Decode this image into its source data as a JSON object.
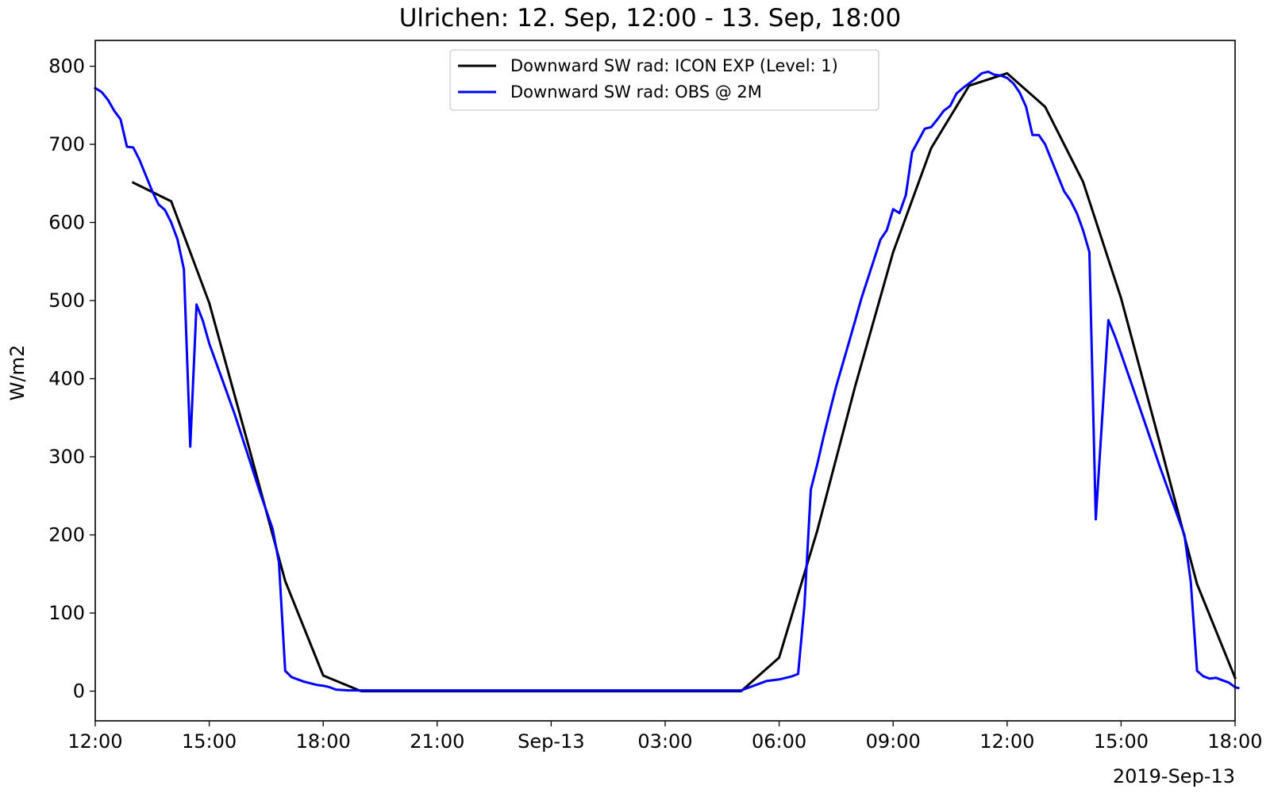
{
  "chart_data": {
    "type": "line",
    "title": "Ulrichen: 12. Sep, 12:00 - 13. Sep, 18:00",
    "xlabel": "",
    "ylabel": "W/m2",
    "x_ticks": [
      "12:00",
      "15:00",
      "18:00",
      "21:00",
      "Sep-13",
      "03:00",
      "06:00",
      "09:00",
      "12:00",
      "15:00",
      "18:00"
    ],
    "x_offset_label": "2019-Sep-13",
    "xlim": [
      "2019-09-12 12:00",
      "2019-09-13 18:00"
    ],
    "y_ticks": [
      0,
      100,
      200,
      300,
      400,
      500,
      600,
      700,
      800
    ],
    "ylim": [
      -38,
      833
    ],
    "grid": false,
    "legend_position": "upper center",
    "series": [
      {
        "name": "Downward SW rad: ICON EXP (Level: 1)",
        "color": "#000000",
        "points": [
          [
            "2019-09-12 13:00",
            651
          ],
          [
            "2019-09-12 14:00",
            627
          ],
          [
            "2019-09-12 15:00",
            497
          ],
          [
            "2019-09-12 16:00",
            320
          ],
          [
            "2019-09-12 17:00",
            141
          ],
          [
            "2019-09-12 18:00",
            20
          ],
          [
            "2019-09-12 19:00",
            0
          ],
          [
            "2019-09-12 20:00",
            0
          ],
          [
            "2019-09-12 21:00",
            0
          ],
          [
            "2019-09-12 22:00",
            0
          ],
          [
            "2019-09-12 23:00",
            0
          ],
          [
            "2019-09-13 00:00",
            0
          ],
          [
            "2019-09-13 01:00",
            0
          ],
          [
            "2019-09-13 02:00",
            0
          ],
          [
            "2019-09-13 03:00",
            0
          ],
          [
            "2019-09-13 04:00",
            0
          ],
          [
            "2019-09-13 05:00",
            0
          ],
          [
            "2019-09-13 06:00",
            43
          ],
          [
            "2019-09-13 07:00",
            205
          ],
          [
            "2019-09-13 08:00",
            390
          ],
          [
            "2019-09-13 09:00",
            562
          ],
          [
            "2019-09-13 10:00",
            695
          ],
          [
            "2019-09-13 11:00",
            775
          ],
          [
            "2019-09-13 12:00",
            791
          ],
          [
            "2019-09-13 13:00",
            748
          ],
          [
            "2019-09-13 14:00",
            652
          ],
          [
            "2019-09-13 15:00",
            503
          ],
          [
            "2019-09-13 16:00",
            321
          ],
          [
            "2019-09-13 17:00",
            137
          ],
          [
            "2019-09-13 18:00",
            17
          ]
        ]
      },
      {
        "name": "Downward SW rad: OBS @ 2M",
        "color": "#0000ff",
        "points": [
          [
            "2019-09-12 12:00",
            772
          ],
          [
            "2019-09-12 12:10",
            767
          ],
          [
            "2019-09-12 12:20",
            757
          ],
          [
            "2019-09-12 12:30",
            743
          ],
          [
            "2019-09-12 12:40",
            732
          ],
          [
            "2019-09-12 12:50",
            697
          ],
          [
            "2019-09-12 13:00",
            696
          ],
          [
            "2019-09-12 13:10",
            680
          ],
          [
            "2019-09-12 13:20",
            660
          ],
          [
            "2019-09-12 13:30",
            640
          ],
          [
            "2019-09-12 13:40",
            623
          ],
          [
            "2019-09-12 13:50",
            616
          ],
          [
            "2019-09-12 14:00",
            600
          ],
          [
            "2019-09-12 14:10",
            578
          ],
          [
            "2019-09-12 14:20",
            540
          ],
          [
            "2019-09-12 14:30",
            313
          ],
          [
            "2019-09-12 14:40",
            495
          ],
          [
            "2019-09-12 14:50",
            474
          ],
          [
            "2019-09-12 15:00",
            445
          ],
          [
            "2019-09-12 15:20",
            400
          ],
          [
            "2019-09-12 15:40",
            355
          ],
          [
            "2019-09-12 16:00",
            305
          ],
          [
            "2019-09-12 16:20",
            255
          ],
          [
            "2019-09-12 16:40",
            208
          ],
          [
            "2019-09-12 16:50",
            165
          ],
          [
            "2019-09-12 17:00",
            26
          ],
          [
            "2019-09-12 17:10",
            18
          ],
          [
            "2019-09-12 17:20",
            15
          ],
          [
            "2019-09-12 17:30",
            12
          ],
          [
            "2019-09-12 17:40",
            10
          ],
          [
            "2019-09-12 17:50",
            8
          ],
          [
            "2019-09-12 18:00",
            7
          ],
          [
            "2019-09-12 18:10",
            5
          ],
          [
            "2019-09-12 18:20",
            2
          ],
          [
            "2019-09-12 18:40",
            1
          ],
          [
            "2019-09-12 19:00",
            1
          ],
          [
            "2019-09-13 05:00",
            1
          ],
          [
            "2019-09-13 05:20",
            7
          ],
          [
            "2019-09-13 05:40",
            13
          ],
          [
            "2019-09-13 06:00",
            15
          ],
          [
            "2019-09-13 06:20",
            19
          ],
          [
            "2019-09-13 06:30",
            22
          ],
          [
            "2019-09-13 06:40",
            110
          ],
          [
            "2019-09-13 06:50",
            258
          ],
          [
            "2019-09-13 07:00",
            290
          ],
          [
            "2019-09-13 07:10",
            325
          ],
          [
            "2019-09-13 07:20",
            358
          ],
          [
            "2019-09-13 07:30",
            390
          ],
          [
            "2019-09-13 07:40",
            418
          ],
          [
            "2019-09-13 07:50",
            446
          ],
          [
            "2019-09-13 08:00",
            474
          ],
          [
            "2019-09-13 08:10",
            503
          ],
          [
            "2019-09-13 08:20",
            528
          ],
          [
            "2019-09-13 08:30",
            553
          ],
          [
            "2019-09-13 08:40",
            578
          ],
          [
            "2019-09-13 08:50",
            590
          ],
          [
            "2019-09-13 09:00",
            617
          ],
          [
            "2019-09-13 09:10",
            612
          ],
          [
            "2019-09-13 09:20",
            635
          ],
          [
            "2019-09-13 09:30",
            690
          ],
          [
            "2019-09-13 09:40",
            705
          ],
          [
            "2019-09-13 09:50",
            720
          ],
          [
            "2019-09-13 10:00",
            722
          ],
          [
            "2019-09-13 10:10",
            732
          ],
          [
            "2019-09-13 10:20",
            743
          ],
          [
            "2019-09-13 10:30",
            749
          ],
          [
            "2019-09-13 10:40",
            765
          ],
          [
            "2019-09-13 10:50",
            772
          ],
          [
            "2019-09-13 11:00",
            778
          ],
          [
            "2019-09-13 11:10",
            784
          ],
          [
            "2019-09-13 11:20",
            791
          ],
          [
            "2019-09-13 11:30",
            793
          ],
          [
            "2019-09-13 11:40",
            789
          ],
          [
            "2019-09-13 11:50",
            788
          ],
          [
            "2019-09-13 12:00",
            785
          ],
          [
            "2019-09-13 12:10",
            778
          ],
          [
            "2019-09-13 12:20",
            766
          ],
          [
            "2019-09-13 12:30",
            748
          ],
          [
            "2019-09-13 12:40",
            712
          ],
          [
            "2019-09-13 12:50",
            712
          ],
          [
            "2019-09-13 13:00",
            700
          ],
          [
            "2019-09-13 13:10",
            680
          ],
          [
            "2019-09-13 13:20",
            660
          ],
          [
            "2019-09-13 13:30",
            640
          ],
          [
            "2019-09-13 13:40",
            628
          ],
          [
            "2019-09-13 13:50",
            612
          ],
          [
            "2019-09-13 14:00",
            590
          ],
          [
            "2019-09-13 14:10",
            562
          ],
          [
            "2019-09-13 14:20",
            220
          ],
          [
            "2019-09-13 14:40",
            475
          ],
          [
            "2019-09-13 14:50",
            455
          ],
          [
            "2019-09-13 15:00",
            432
          ],
          [
            "2019-09-13 15:20",
            385
          ],
          [
            "2019-09-13 15:40",
            338
          ],
          [
            "2019-09-13 16:00",
            290
          ],
          [
            "2019-09-13 16:20",
            245
          ],
          [
            "2019-09-13 16:40",
            200
          ],
          [
            "2019-09-13 16:50",
            140
          ],
          [
            "2019-09-13 17:00",
            26
          ],
          [
            "2019-09-13 17:10",
            19
          ],
          [
            "2019-09-13 17:20",
            16
          ],
          [
            "2019-09-13 17:30",
            17
          ],
          [
            "2019-09-13 17:40",
            14
          ],
          [
            "2019-09-13 17:50",
            11
          ],
          [
            "2019-09-13 18:00",
            5
          ],
          [
            "2019-09-13 18:05",
            4
          ]
        ]
      }
    ]
  }
}
